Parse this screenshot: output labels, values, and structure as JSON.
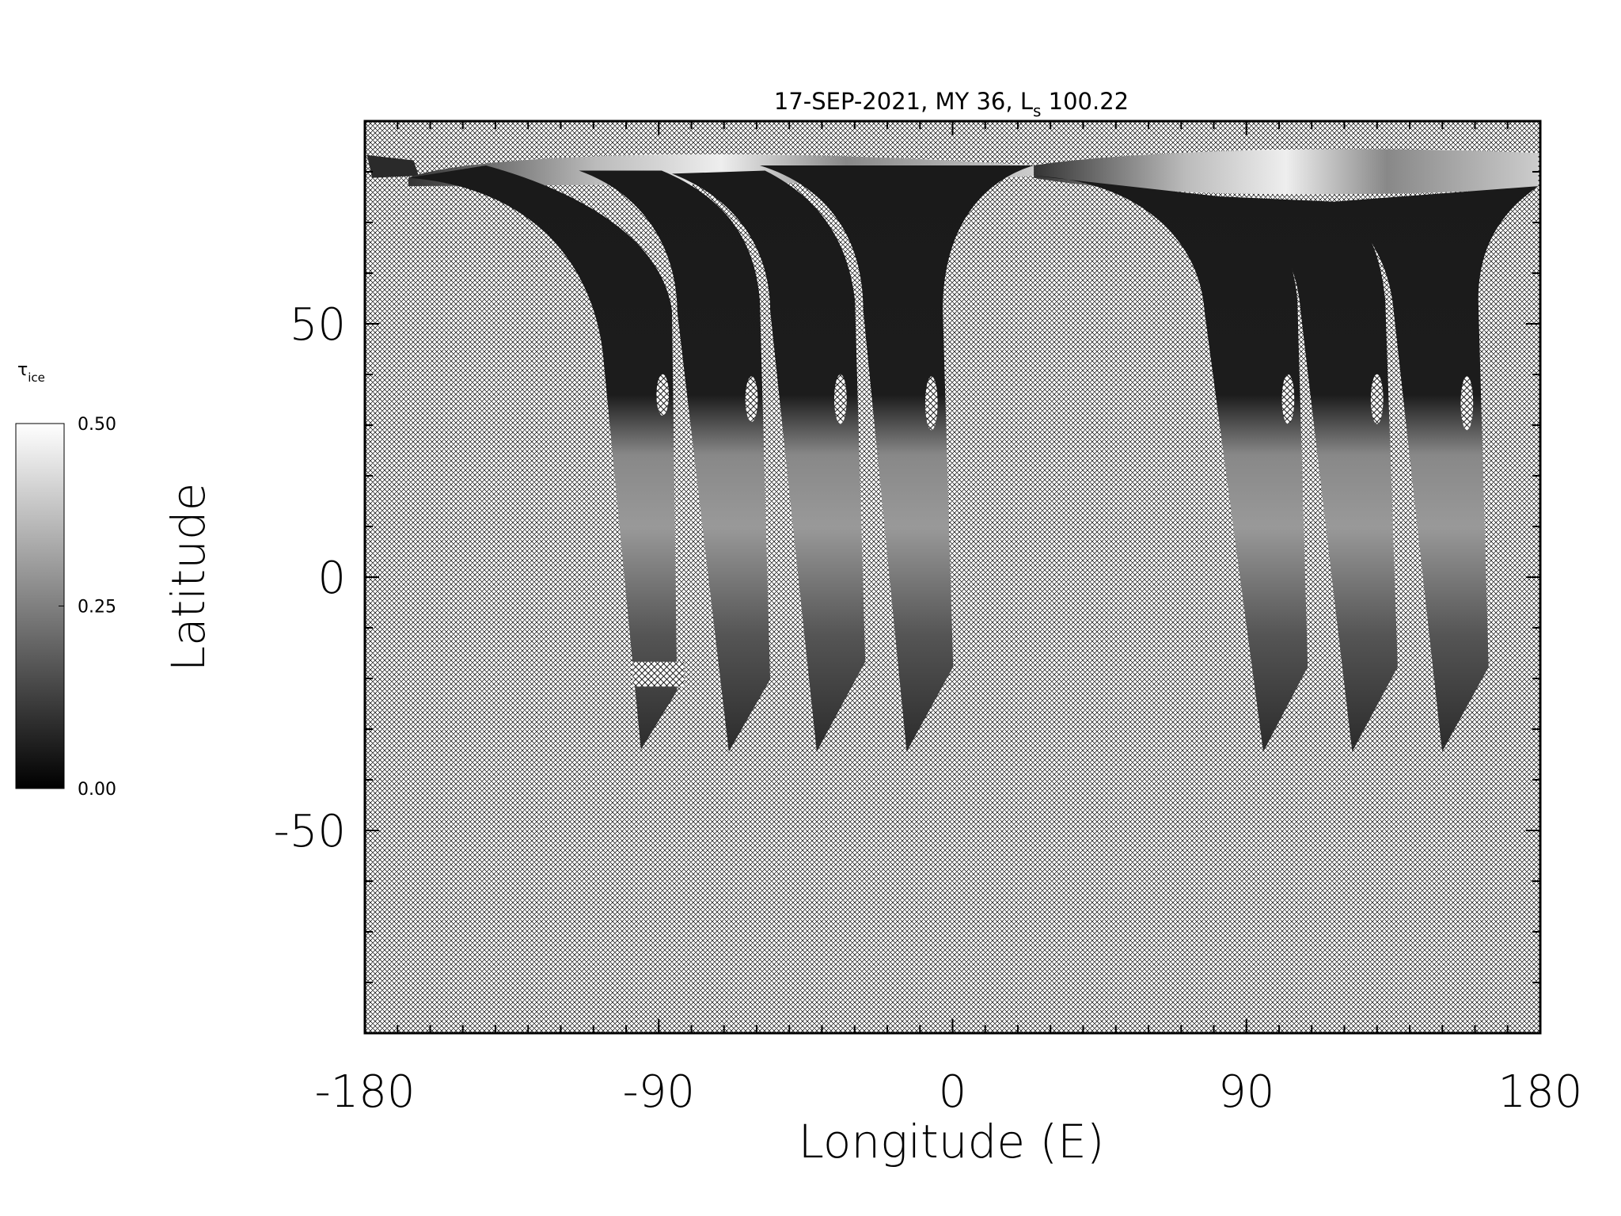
{
  "chart_data": {
    "type": "map",
    "title": {
      "text": "17-SEP-2021, MY 36,  L",
      "sub": "s",
      "after": " 100.22"
    },
    "x_label": "Longitude (E)",
    "y_label": "Latitude",
    "xlim": [
      -180,
      180
    ],
    "ylim": [
      -90,
      90
    ],
    "xticks": [
      -180,
      -90,
      0,
      90,
      180
    ],
    "yticks": [
      -50,
      0,
      50
    ],
    "minor_tick_interval": 10,
    "colorbar": {
      "label": {
        "text": "τ",
        "sub": "ice"
      },
      "range": [
        0,
        0.5
      ],
      "ticks": [
        {
          "value": 0,
          "label": "0.00"
        },
        {
          "value": 0.25,
          "label": "0.25"
        },
        {
          "value": 0.5,
          "label": "0.50"
        }
      ]
    }
  }
}
